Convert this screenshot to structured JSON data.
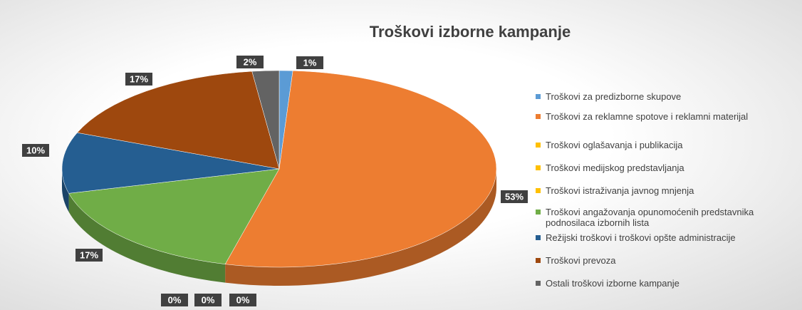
{
  "chart_data": {
    "type": "pie",
    "title": "Troškovi izborne kampanje",
    "categories": [
      "Troškovi za predizborne skupove",
      "Troškovi za reklamne spotove i reklamni materijal",
      "Troškovi oglašavanja i publikacija",
      "Troškovi medijskog predstavljanja",
      "Troškovi istraživanja javnog mnjenja",
      "Troškovi angažovanja opunomoćenih predstavnika podnosilaca izbornih lista",
      "Režijski troškovi i troškovi opšte administracije",
      "Troškovi prevoza",
      "Ostali troškovi izborne kampanje"
    ],
    "values": [
      1,
      53,
      0,
      0,
      0,
      17,
      10,
      17,
      2
    ],
    "value_labels": [
      "1%",
      "53%",
      "0%",
      "0%",
      "0%",
      "17%",
      "10%",
      "17%",
      "2%"
    ],
    "colors": [
      "#5b9bd5",
      "#ed7d31",
      "#ffc000",
      "#ffc000",
      "#ffc000",
      "#70ad47",
      "#255e91",
      "#9e480e",
      "#636363"
    ],
    "legend": "right"
  }
}
